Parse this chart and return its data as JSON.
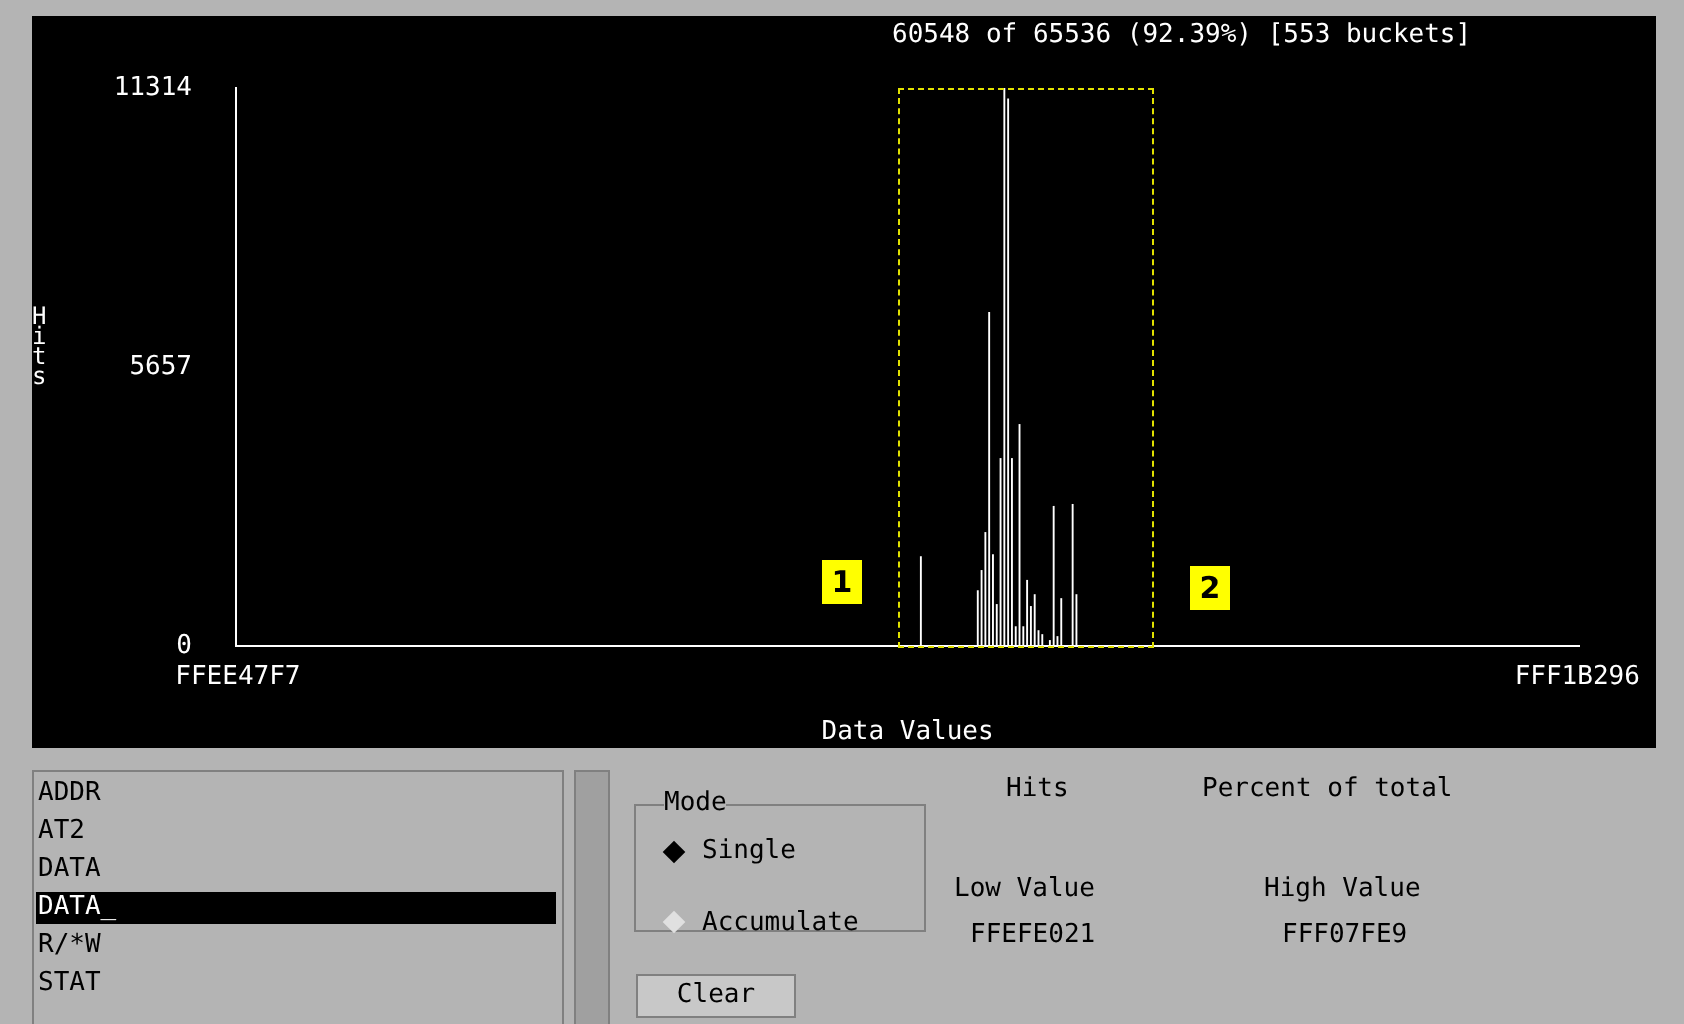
{
  "chart_data": {
    "type": "bar",
    "ylabel": "Hits",
    "xlabel": "Data Values",
    "categories": [
      "FFEE47F7",
      null,
      null,
      null,
      null,
      null,
      null,
      null,
      null,
      null,
      null,
      null,
      null,
      null,
      null,
      null,
      null,
      null,
      null,
      null,
      null,
      null,
      null,
      null,
      null,
      null,
      null,
      null,
      null,
      null,
      null,
      null,
      null,
      null,
      null,
      null,
      null,
      null,
      null,
      null,
      null,
      null,
      null,
      null,
      null,
      null,
      null,
      null,
      null,
      null,
      null,
      null,
      null,
      null,
      null,
      null,
      null,
      null,
      null,
      null,
      null,
      null,
      null,
      null,
      null,
      null,
      null,
      null,
      null,
      null,
      null,
      null,
      null,
      null,
      null,
      null,
      null,
      null,
      null,
      null,
      null,
      null,
      null,
      null,
      null,
      null,
      null,
      null,
      null,
      null,
      null,
      null,
      null,
      null,
      null,
      null,
      null,
      null,
      null,
      null,
      null,
      null,
      null,
      null,
      null,
      null,
      null,
      null,
      null,
      null,
      null,
      null,
      null,
      null,
      null,
      null,
      null,
      null,
      null,
      null,
      null,
      null,
      null,
      null,
      null,
      null,
      null,
      null,
      null,
      null,
      null,
      null,
      null,
      null,
      null,
      null,
      null,
      null,
      null,
      null,
      null,
      null,
      null,
      null,
      null,
      null,
      null,
      null,
      null,
      null,
      null,
      null,
      null,
      null,
      null,
      null,
      null,
      null,
      null,
      null,
      null,
      null,
      null,
      null,
      null,
      null,
      null,
      null,
      null,
      null,
      null,
      null,
      null,
      null,
      null,
      null,
      null,
      null,
      null,
      null,
      null,
      null,
      null,
      null,
      null,
      null,
      null,
      null,
      null,
      null,
      null,
      null,
      null,
      null,
      null,
      null,
      null,
      null,
      null,
      null,
      null,
      null,
      null,
      null,
      null,
      null,
      null,
      null,
      null,
      null,
      null,
      null,
      null,
      null,
      null,
      null,
      null,
      null,
      null,
      null,
      null,
      null,
      null,
      null,
      null,
      null,
      null,
      null,
      null,
      null,
      null,
      null,
      null,
      null,
      null,
      null,
      null,
      null,
      null,
      null,
      null,
      null,
      null,
      null,
      null,
      null,
      null,
      null,
      null,
      null,
      null,
      null,
      null,
      null,
      null,
      null,
      null,
      null,
      null,
      null,
      null,
      null,
      null,
      null,
      null,
      null,
      null,
      null,
      null,
      null,
      null,
      null,
      null,
      null,
      null,
      null,
      null,
      null,
      null,
      null,
      null,
      null,
      null,
      null,
      null,
      null,
      null,
      null,
      null,
      null,
      null,
      null,
      null,
      null,
      null,
      null,
      null,
      null,
      null,
      null,
      null,
      null,
      null,
      null,
      null,
      null,
      null,
      null,
      null,
      null,
      null,
      null,
      null,
      null,
      null,
      null,
      null,
      null,
      null,
      null,
      null,
      null,
      null,
      null,
      null,
      null,
      null,
      null,
      null,
      null,
      null,
      null,
      null,
      null,
      null,
      null,
      null,
      null,
      null,
      null,
      null,
      null,
      null,
      null,
      null,
      null,
      null,
      null,
      null,
      null,
      null,
      null,
      null,
      "FFF1B296"
    ],
    "values": [
      0,
      0,
      0,
      0,
      0,
      0,
      0,
      0,
      0,
      0,
      0,
      0,
      0,
      0,
      0,
      0,
      0,
      0,
      0,
      0,
      0,
      0,
      0,
      0,
      0,
      0,
      0,
      0,
      0,
      0,
      0,
      0,
      0,
      0,
      0,
      0,
      0,
      0,
      0,
      0,
      0,
      0,
      0,
      0,
      0,
      0,
      0,
      0,
      0,
      0,
      0,
      0,
      0,
      0,
      0,
      0,
      0,
      0,
      0,
      0,
      0,
      0,
      0,
      0,
      0,
      0,
      0,
      0,
      0,
      0,
      0,
      0,
      0,
      0,
      0,
      0,
      0,
      0,
      0,
      0,
      0,
      0,
      0,
      0,
      0,
      0,
      0,
      0,
      0,
      0,
      0,
      0,
      0,
      0,
      0,
      0,
      0,
      0,
      0,
      0,
      0,
      0,
      0,
      0,
      0,
      0,
      0,
      0,
      0,
      0,
      0,
      0,
      0,
      0,
      0,
      0,
      0,
      0,
      0,
      0,
      0,
      0,
      0,
      0,
      0,
      0,
      0,
      0,
      0,
      0,
      0,
      0,
      0,
      0,
      0,
      0,
      0,
      0,
      0,
      0,
      0,
      0,
      0,
      0,
      0,
      0,
      0,
      0,
      0,
      0,
      0,
      0,
      0,
      0,
      0,
      0,
      0,
      0,
      0,
      0,
      0,
      0,
      0,
      0,
      0,
      0,
      0,
      0,
      0,
      0,
      0,
      0,
      0,
      0,
      0,
      0,
      0,
      0,
      0,
      0,
      1820,
      0,
      0,
      0,
      0,
      0,
      0,
      0,
      0,
      0,
      0,
      0,
      0,
      0,
      0,
      1130,
      1540,
      2310,
      6770,
      1860,
      850,
      3810,
      11314,
      11100,
      3810,
      400,
      4500,
      400,
      1340,
      810,
      1050,
      320,
      240,
      0,
      120,
      2840,
      200,
      970,
      0,
      0,
      2880,
      1050,
      0,
      0,
      0,
      0,
      0,
      0,
      0,
      0,
      0,
      0,
      0,
      0,
      0,
      0,
      0,
      0,
      0,
      0,
      0,
      0,
      0,
      0,
      0,
      0,
      0,
      0,
      0,
      0,
      0,
      0,
      0,
      0,
      0,
      0,
      0,
      0,
      0,
      0,
      0,
      0,
      0,
      0,
      0,
      0,
      0,
      0,
      0,
      0,
      0,
      0,
      0,
      0,
      0,
      0,
      0,
      0,
      0,
      0,
      0,
      0,
      0,
      0,
      0,
      0,
      0,
      0,
      0,
      0,
      0,
      0,
      0,
      0,
      0,
      0,
      0,
      0,
      0,
      0,
      0,
      0,
      0,
      0,
      0,
      0,
      0,
      0,
      0,
      0,
      0,
      0,
      0,
      0,
      0,
      0,
      0,
      0,
      0,
      0,
      0,
      0,
      0,
      0,
      0,
      0,
      0,
      0,
      0,
      0,
      0,
      0,
      0,
      0,
      0,
      0,
      0,
      0,
      0,
      0,
      0,
      0,
      0,
      0,
      0,
      0,
      0,
      0,
      0,
      0,
      0,
      0,
      0,
      0
    ],
    "color": "#ffffff",
    "ylim": [
      0,
      11314
    ],
    "yticks": [
      0,
      5657,
      11314
    ],
    "grid": false,
    "legend": false,
    "annotations": [
      "60548 of 65536 (92.39%) [553 buckets]",
      "1",
      "2",
      "ADDR",
      "AT2",
      "DATA",
      "DATA_",
      "R/*W",
      "STAT",
      "Mode",
      "Single",
      "Accumulate",
      "Clear",
      "Hits",
      "Percent of total",
      "Low Value",
      "High Value",
      "FFEFE021",
      "FFF07FE9"
    ]
  }
}
